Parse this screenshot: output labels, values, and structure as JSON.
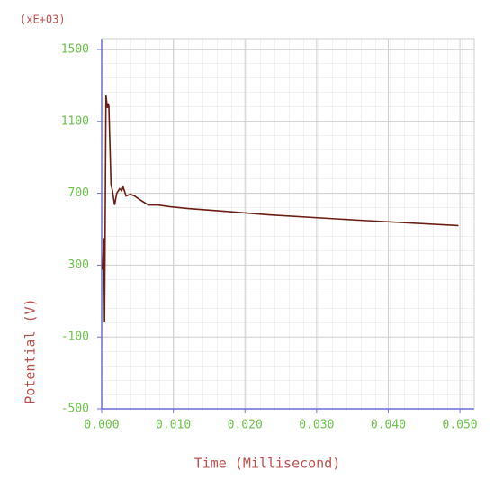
{
  "chart_data": {
    "type": "line",
    "multiplier_label": "(xE+03)",
    "xlabel": "Time (Millisecond)",
    "ylabel": "Potential (V)",
    "x": [
      0.0001,
      0.0003,
      0.0004,
      0.0006,
      0.0008,
      0.0009,
      0.001,
      0.0013,
      0.0015,
      0.0018,
      0.0021,
      0.0025,
      0.0028,
      0.003,
      0.0034,
      0.004,
      0.0046,
      0.0053,
      0.0065,
      0.0078,
      0.0096,
      0.0121,
      0.0171,
      0.0234,
      0.0359,
      0.0498
    ],
    "series": [
      {
        "color": "#6b1d12",
        "values": [
          275,
          450,
          -15,
          1245,
          1175,
          1200,
          1185,
          750,
          715,
          635,
          700,
          725,
          715,
          735,
          685,
          695,
          685,
          665,
          635,
          635,
          625,
          615,
          600,
          580,
          550,
          520
        ]
      }
    ],
    "xlim": [
      0,
      0.052
    ],
    "ylim": [
      -500,
      1560
    ],
    "xticks": [
      {
        "value": 0,
        "label": "0.000"
      },
      {
        "value": 0.01,
        "label": "0.010"
      },
      {
        "value": 0.02,
        "label": "0.020"
      },
      {
        "value": 0.03,
        "label": "0.030"
      },
      {
        "value": 0.04,
        "label": "0.040"
      },
      {
        "value": 0.05,
        "label": "0.050"
      }
    ],
    "yticks": [
      -500,
      -100,
      300,
      700,
      1100,
      1500
    ],
    "grid": true
  }
}
